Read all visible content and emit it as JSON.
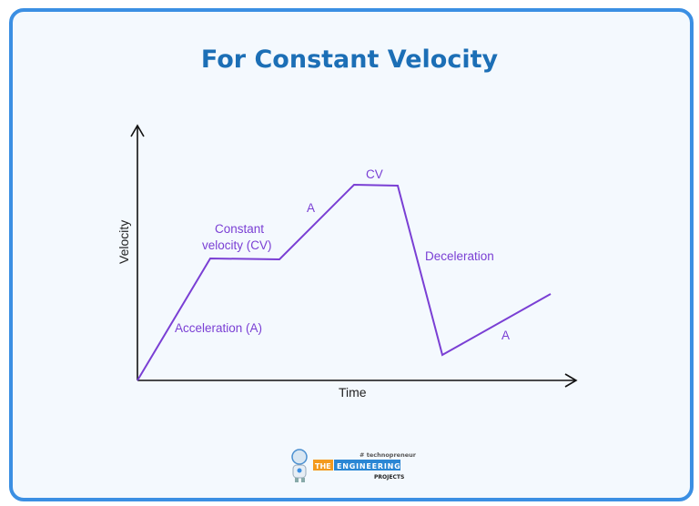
{
  "title": "For Constant Velocity",
  "axes": {
    "x_label": "Time",
    "y_label": "Velocity"
  },
  "segment_labels": {
    "acceleration": "Acceleration (A)",
    "constant_line1": "Constant",
    "constant_line2": "velocity (CV)",
    "accel2": "A",
    "cv2": "CV",
    "deceleration": "Deceleration",
    "accel3": "A"
  },
  "colors": {
    "line": "#7a3fd4",
    "title": "#1c6fb6",
    "border": "#3b8fe3"
  },
  "logo": {
    "tagline": "# technopreneur",
    "the": "THE",
    "engineering": "ENGINEERING",
    "projects": "PROJECTS"
  }
}
